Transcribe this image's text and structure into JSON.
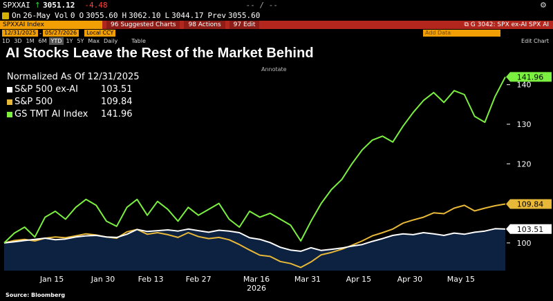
{
  "quote": {
    "ticker": "SPXXAI",
    "arrow": "↑",
    "last": "3051.12",
    "change": "-4.48",
    "dashes": "-- /  --"
  },
  "stats": {
    "on_label": "On",
    "date": "26-May",
    "vol_label": "Vol",
    "vol": "0",
    "o_label": "O",
    "open": "3055.60",
    "h_label": "H",
    "high": "3062.10",
    "l_label": "L",
    "low": "3044.17",
    "prev_label": "Prev",
    "prev": "3055.60"
  },
  "toolbar": {
    "ticker_label": "SPXXAI Index",
    "menus": [
      "96 Suggested Charts",
      "98 Actions",
      "97 Edit"
    ],
    "function_label": "G 3042: SPX ex-AI SPX AI"
  },
  "range": {
    "start": "12/31/2025",
    "end": "05/27/2026",
    "currency": "Local CCY",
    "add_data": "Add Data"
  },
  "periods": [
    "1D",
    "3D",
    "1M",
    "6M",
    "YTD",
    "1Y",
    "5Y",
    "Max",
    "Daily"
  ],
  "selected_period": "YTD",
  "period_right": {
    "table": "Table",
    "edit_chart": "Edit Chart"
  },
  "annotate_label": "Annotate",
  "headline": "AI Stocks Leave the Rest of the Market Behind",
  "legend": {
    "normalized": "Normalized As Of 12/31/2025",
    "items": [
      {
        "name": "S&P 500 ex-AI",
        "value": "103.51",
        "color": "#ffffff"
      },
      {
        "name": "S&P 500",
        "value": "109.84",
        "color": "#e8b838"
      },
      {
        "name": "GS TMT AI Index",
        "value": "141.96",
        "color": "#7cf040"
      }
    ]
  },
  "source": "Source: Bloomberg",
  "chart_data": {
    "type": "line",
    "title": "AI Stocks Leave the Rest of the Market Behind",
    "subtitle": "Normalized As Of 12/31/2025",
    "xlabel": "2026",
    "ylabel": "",
    "ylim": [
      93,
      145
    ],
    "yticks": [
      100,
      110,
      120,
      130,
      140
    ],
    "grid": false,
    "legend_position": "top-left",
    "x_ticks": [
      "Jan 15",
      "Jan 30",
      "Feb 13",
      "Feb 27",
      "Mar 16",
      "Mar 31",
      "Apr 15",
      "Apr 30",
      "May 15"
    ],
    "x_year_label": "2026",
    "x_days": [
      0,
      3,
      6,
      9,
      12,
      15,
      18,
      21,
      24,
      27,
      30,
      33,
      36,
      39,
      42,
      45,
      48,
      51,
      54,
      57,
      60,
      63,
      66,
      69,
      72,
      75,
      78,
      81,
      84,
      87,
      90,
      93,
      96,
      99,
      102,
      105,
      108,
      111,
      114,
      117,
      120,
      123,
      126,
      129,
      132,
      135,
      138,
      141,
      144,
      147
    ],
    "series": [
      {
        "name": "S&P 500 ex-AI",
        "color": "#ffffff",
        "fill": "#0d2240",
        "last": 103.51,
        "values": [
          100.0,
          100.3,
          100.6,
          100.9,
          101.2,
          100.8,
          101.0,
          101.5,
          101.8,
          101.9,
          101.5,
          101.4,
          102.2,
          103.4,
          102.9,
          103.1,
          103.3,
          103.0,
          103.5,
          103.1,
          102.7,
          103.2,
          103.0,
          102.6,
          101.3,
          100.9,
          100.1,
          98.9,
          98.2,
          97.9,
          98.8,
          98.1,
          98.4,
          98.7,
          99.2,
          99.6,
          100.4,
          101.1,
          101.9,
          102.3,
          102.1,
          102.6,
          102.3,
          101.9,
          102.5,
          102.2,
          102.7,
          103.0,
          103.6,
          103.51
        ]
      },
      {
        "name": "S&P 500",
        "color": "#e8b838",
        "last": 109.84,
        "values": [
          100.0,
          100.6,
          100.9,
          100.5,
          101.2,
          101.5,
          101.3,
          101.8,
          102.3,
          102.0,
          101.5,
          101.2,
          102.8,
          103.4,
          102.2,
          102.6,
          102.1,
          101.4,
          102.6,
          101.6,
          101.1,
          101.4,
          100.8,
          99.6,
          98.2,
          96.9,
          96.6,
          95.3,
          94.8,
          93.8,
          95.2,
          97.0,
          97.6,
          98.4,
          99.4,
          100.5,
          101.8,
          102.6,
          103.5,
          105.0,
          105.8,
          106.5,
          107.6,
          107.4,
          108.8,
          109.5,
          108.1,
          108.8,
          109.4,
          109.84
        ]
      },
      {
        "name": "GS TMT AI Index",
        "color": "#7cf040",
        "last": 141.96,
        "values": [
          100.0,
          102.5,
          104.0,
          101.5,
          106.5,
          108.0,
          106.0,
          109.0,
          111.0,
          109.5,
          105.5,
          104.2,
          109.0,
          111.0,
          107.0,
          110.5,
          108.5,
          105.5,
          109.0,
          107.0,
          108.5,
          110.0,
          106.0,
          104.0,
          108.0,
          106.5,
          107.5,
          106.0,
          104.5,
          100.5,
          105.5,
          110.0,
          113.5,
          116.0,
          120.0,
          123.5,
          126.0,
          127.0,
          125.5,
          129.5,
          133.0,
          136.0,
          138.0,
          135.5,
          138.5,
          137.5,
          132.0,
          130.5,
          137.0,
          141.96
        ]
      }
    ]
  }
}
